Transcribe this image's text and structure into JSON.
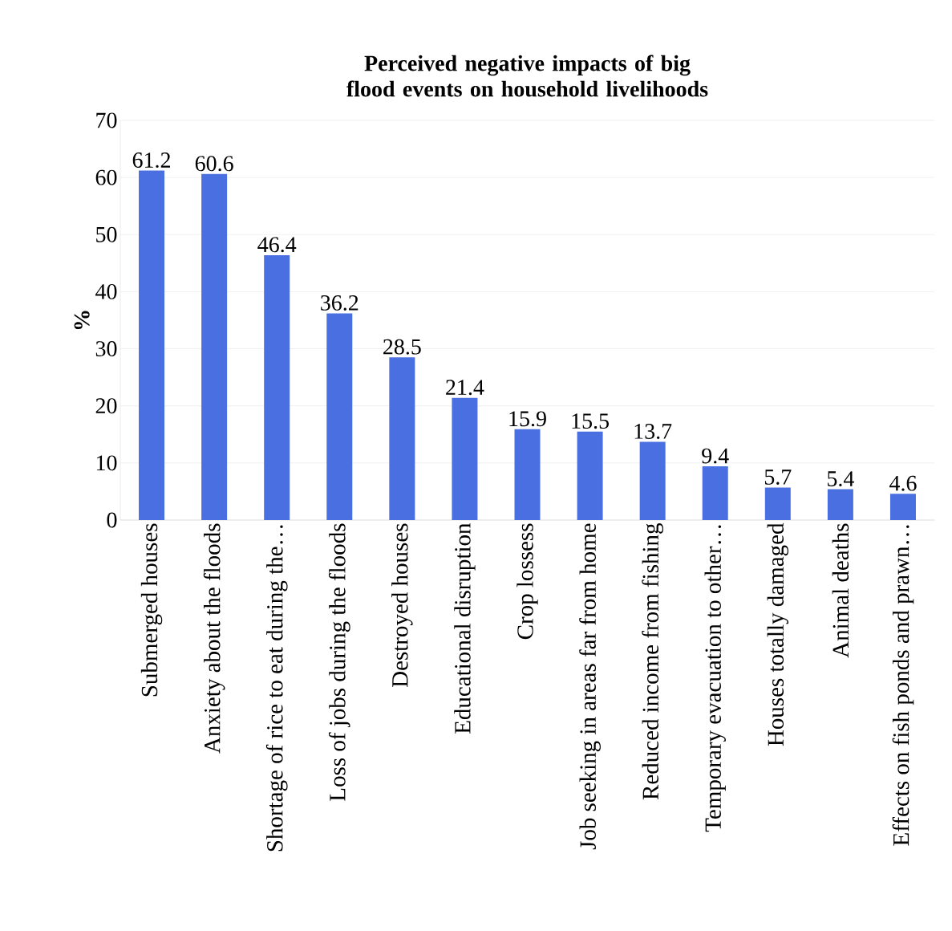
{
  "chart_data": {
    "type": "bar",
    "title": "Perceived negative impacts of big flood events on household livelihoods",
    "ylabel": "%",
    "categories": [
      "Submerged houses",
      "Anxiety about the floods",
      "Shortage of rice to eat during the…",
      "Loss of jobs during the floods",
      "Destroyed houses",
      "Educational disruption",
      "Crop lossess",
      "Job seeking in areas far from home",
      "Reduced income from fishing",
      "Temporary evacuation to other…",
      "Houses totally damaged",
      "Animal deaths",
      "Effects on fish ponds and prawn…"
    ],
    "values": [
      61.2,
      60.6,
      46.4,
      36.2,
      28.5,
      21.4,
      15.9,
      15.5,
      13.7,
      9.4,
      5.7,
      5.4,
      4.6
    ],
    "color": "#4a6fe0",
    "ylim": [
      0,
      70
    ],
    "yticks": [
      0,
      10,
      20,
      30,
      40,
      50,
      60,
      70
    ],
    "grid": "y",
    "data_labels": true
  }
}
